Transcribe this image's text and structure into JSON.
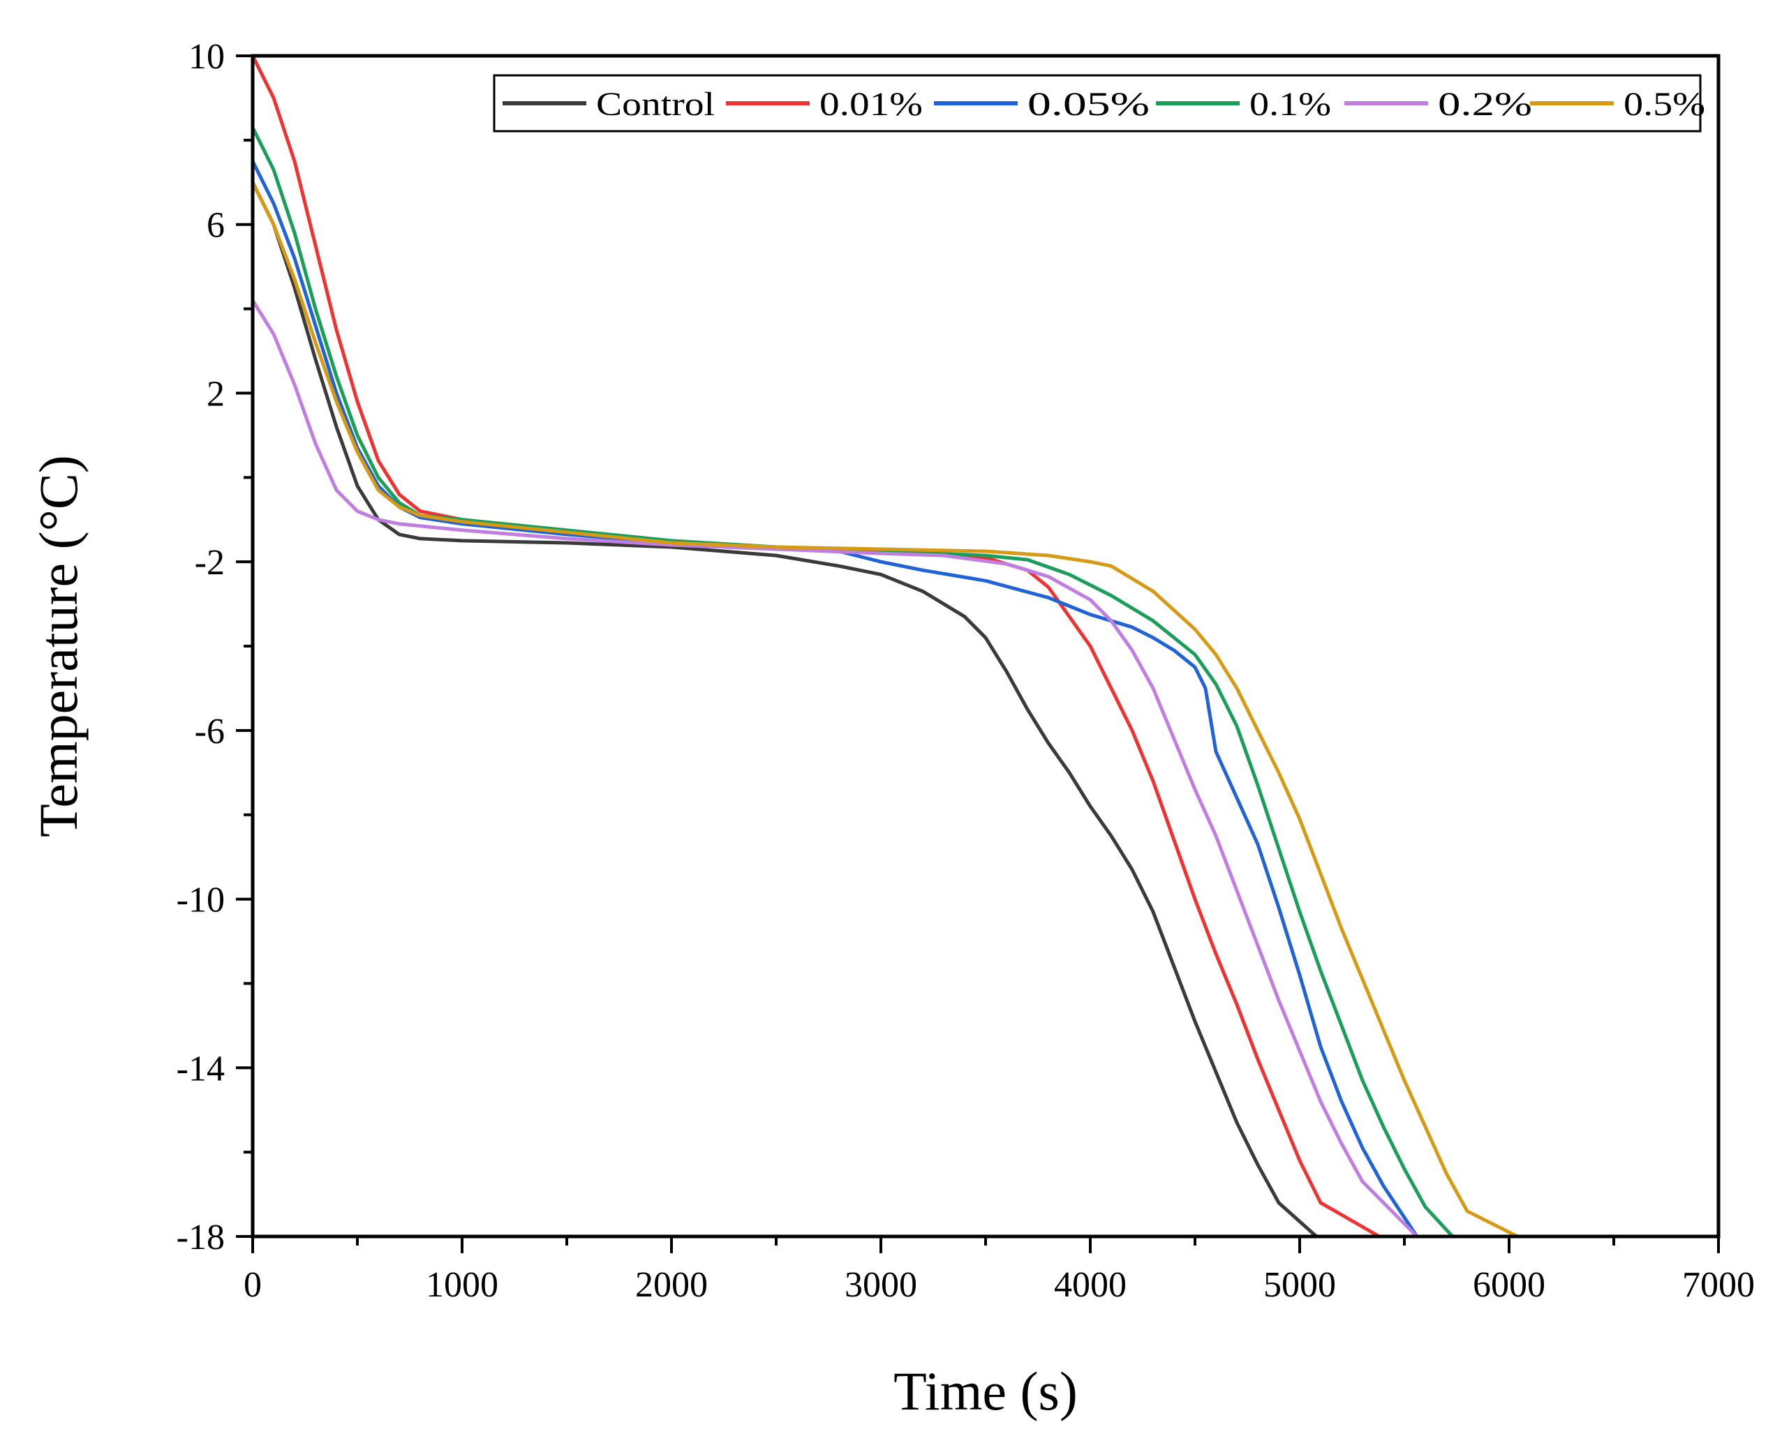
{
  "chart_data": {
    "type": "line",
    "title": "",
    "xlabel": "Time (s)",
    "ylabel": "Temperature (°C)",
    "xlim": [
      0,
      7000
    ],
    "ylim": [
      -18,
      10
    ],
    "xticks": [
      0,
      1000,
      2000,
      3000,
      4000,
      5000,
      6000,
      7000
    ],
    "yticks": [
      10,
      6,
      2,
      -2,
      -6,
      -10,
      -14,
      -18
    ],
    "legend_position": "top-right",
    "series": [
      {
        "name": "Control",
        "color": "#3a3a3a",
        "points": [
          [
            0,
            7.0
          ],
          [
            100,
            6.0
          ],
          [
            200,
            4.5
          ],
          [
            300,
            2.8
          ],
          [
            400,
            1.2
          ],
          [
            500,
            -0.2
          ],
          [
            600,
            -1.0
          ],
          [
            700,
            -1.35
          ],
          [
            800,
            -1.45
          ],
          [
            1000,
            -1.5
          ],
          [
            1500,
            -1.55
          ],
          [
            2000,
            -1.65
          ],
          [
            2500,
            -1.85
          ],
          [
            2800,
            -2.1
          ],
          [
            3000,
            -2.3
          ],
          [
            3200,
            -2.7
          ],
          [
            3400,
            -3.3
          ],
          [
            3500,
            -3.8
          ],
          [
            3600,
            -4.6
          ],
          [
            3700,
            -5.5
          ],
          [
            3800,
            -6.3
          ],
          [
            3900,
            -7.0
          ],
          [
            4000,
            -7.8
          ],
          [
            4100,
            -8.5
          ],
          [
            4200,
            -9.3
          ],
          [
            4300,
            -10.3
          ],
          [
            4400,
            -11.6
          ],
          [
            4500,
            -12.9
          ],
          [
            4600,
            -14.1
          ],
          [
            4700,
            -15.3
          ],
          [
            4800,
            -16.3
          ],
          [
            4900,
            -17.2
          ],
          [
            5080,
            -18
          ]
        ]
      },
      {
        "name": "0.01%",
        "color": "#ee3333",
        "points": [
          [
            0,
            10.0
          ],
          [
            100,
            9.0
          ],
          [
            200,
            7.5
          ],
          [
            300,
            5.5
          ],
          [
            400,
            3.5
          ],
          [
            500,
            1.8
          ],
          [
            600,
            0.4
          ],
          [
            700,
            -0.4
          ],
          [
            800,
            -0.8
          ],
          [
            1000,
            -1.0
          ],
          [
            1500,
            -1.3
          ],
          [
            2000,
            -1.55
          ],
          [
            2500,
            -1.65
          ],
          [
            3000,
            -1.75
          ],
          [
            3500,
            -1.9
          ],
          [
            3700,
            -2.2
          ],
          [
            3800,
            -2.6
          ],
          [
            3900,
            -3.3
          ],
          [
            4000,
            -4.0
          ],
          [
            4100,
            -5.0
          ],
          [
            4200,
            -6.0
          ],
          [
            4300,
            -7.2
          ],
          [
            4400,
            -8.6
          ],
          [
            4500,
            -10.0
          ],
          [
            4600,
            -11.3
          ],
          [
            4700,
            -12.5
          ],
          [
            4800,
            -13.8
          ],
          [
            4900,
            -15.0
          ],
          [
            5000,
            -16.2
          ],
          [
            5100,
            -17.2
          ],
          [
            5380,
            -18
          ]
        ]
      },
      {
        "name": "0.05%",
        "color": "#1f63d6",
        "points": [
          [
            0,
            7.5
          ],
          [
            100,
            6.5
          ],
          [
            200,
            5.2
          ],
          [
            300,
            3.6
          ],
          [
            400,
            2.0
          ],
          [
            500,
            0.7
          ],
          [
            600,
            -0.2
          ],
          [
            700,
            -0.7
          ],
          [
            800,
            -0.95
          ],
          [
            1000,
            -1.1
          ],
          [
            1500,
            -1.35
          ],
          [
            2000,
            -1.55
          ],
          [
            2500,
            -1.65
          ],
          [
            2800,
            -1.75
          ],
          [
            3000,
            -2.0
          ],
          [
            3200,
            -2.2
          ],
          [
            3500,
            -2.45
          ],
          [
            3800,
            -2.85
          ],
          [
            4000,
            -3.25
          ],
          [
            4200,
            -3.55
          ],
          [
            4300,
            -3.8
          ],
          [
            4400,
            -4.1
          ],
          [
            4500,
            -4.5
          ],
          [
            4550,
            -5.0
          ],
          [
            4600,
            -6.5
          ],
          [
            4700,
            -7.6
          ],
          [
            4800,
            -8.7
          ],
          [
            4900,
            -10.2
          ],
          [
            5000,
            -11.8
          ],
          [
            5100,
            -13.5
          ],
          [
            5200,
            -14.8
          ],
          [
            5300,
            -15.9
          ],
          [
            5400,
            -16.8
          ],
          [
            5560,
            -18
          ]
        ]
      },
      {
        "name": "0.1%",
        "color": "#1b9e5a",
        "points": [
          [
            0,
            8.3
          ],
          [
            100,
            7.3
          ],
          [
            200,
            5.8
          ],
          [
            300,
            4.0
          ],
          [
            400,
            2.4
          ],
          [
            500,
            1.0
          ],
          [
            600,
            0.0
          ],
          [
            700,
            -0.6
          ],
          [
            800,
            -0.9
          ],
          [
            1000,
            -1.0
          ],
          [
            1500,
            -1.25
          ],
          [
            2000,
            -1.5
          ],
          [
            2500,
            -1.65
          ],
          [
            3000,
            -1.75
          ],
          [
            3500,
            -1.85
          ],
          [
            3700,
            -1.95
          ],
          [
            3900,
            -2.3
          ],
          [
            4100,
            -2.8
          ],
          [
            4300,
            -3.4
          ],
          [
            4500,
            -4.2
          ],
          [
            4600,
            -4.9
          ],
          [
            4700,
            -5.9
          ],
          [
            4800,
            -7.3
          ],
          [
            4900,
            -8.8
          ],
          [
            5000,
            -10.3
          ],
          [
            5100,
            -11.7
          ],
          [
            5200,
            -13.0
          ],
          [
            5300,
            -14.3
          ],
          [
            5400,
            -15.4
          ],
          [
            5500,
            -16.4
          ],
          [
            5600,
            -17.3
          ],
          [
            5730,
            -18
          ]
        ]
      },
      {
        "name": "0.2%",
        "color": "#c07ee0",
        "points": [
          [
            0,
            4.2
          ],
          [
            100,
            3.4
          ],
          [
            200,
            2.2
          ],
          [
            300,
            0.8
          ],
          [
            400,
            -0.3
          ],
          [
            500,
            -0.8
          ],
          [
            600,
            -1.0
          ],
          [
            700,
            -1.1
          ],
          [
            800,
            -1.15
          ],
          [
            1000,
            -1.25
          ],
          [
            1500,
            -1.45
          ],
          [
            2000,
            -1.6
          ],
          [
            2500,
            -1.7
          ],
          [
            3000,
            -1.8
          ],
          [
            3300,
            -1.85
          ],
          [
            3600,
            -2.05
          ],
          [
            3800,
            -2.35
          ],
          [
            4000,
            -2.9
          ],
          [
            4100,
            -3.4
          ],
          [
            4200,
            -4.1
          ],
          [
            4300,
            -5.0
          ],
          [
            4400,
            -6.2
          ],
          [
            4500,
            -7.4
          ],
          [
            4600,
            -8.5
          ],
          [
            4700,
            -9.8
          ],
          [
            4800,
            -11.1
          ],
          [
            4900,
            -12.4
          ],
          [
            5000,
            -13.6
          ],
          [
            5100,
            -14.8
          ],
          [
            5200,
            -15.8
          ],
          [
            5300,
            -16.7
          ],
          [
            5560,
            -18
          ]
        ]
      },
      {
        "name": "0.5%",
        "color": "#d69a14",
        "points": [
          [
            0,
            7.0
          ],
          [
            100,
            6.0
          ],
          [
            200,
            4.7
          ],
          [
            300,
            3.2
          ],
          [
            400,
            1.8
          ],
          [
            500,
            0.6
          ],
          [
            600,
            -0.3
          ],
          [
            700,
            -0.7
          ],
          [
            800,
            -0.9
          ],
          [
            1000,
            -1.05
          ],
          [
            1500,
            -1.3
          ],
          [
            2000,
            -1.55
          ],
          [
            2500,
            -1.65
          ],
          [
            3000,
            -1.7
          ],
          [
            3500,
            -1.75
          ],
          [
            3800,
            -1.85
          ],
          [
            4000,
            -2.0
          ],
          [
            4100,
            -2.1
          ],
          [
            4300,
            -2.7
          ],
          [
            4500,
            -3.6
          ],
          [
            4600,
            -4.2
          ],
          [
            4700,
            -5.0
          ],
          [
            4800,
            -6.0
          ],
          [
            4900,
            -7.0
          ],
          [
            5000,
            -8.1
          ],
          [
            5100,
            -9.4
          ],
          [
            5200,
            -10.7
          ],
          [
            5300,
            -11.9
          ],
          [
            5400,
            -13.1
          ],
          [
            5500,
            -14.3
          ],
          [
            5600,
            -15.4
          ],
          [
            5700,
            -16.5
          ],
          [
            5800,
            -17.4
          ],
          [
            6040,
            -18
          ]
        ]
      }
    ]
  }
}
